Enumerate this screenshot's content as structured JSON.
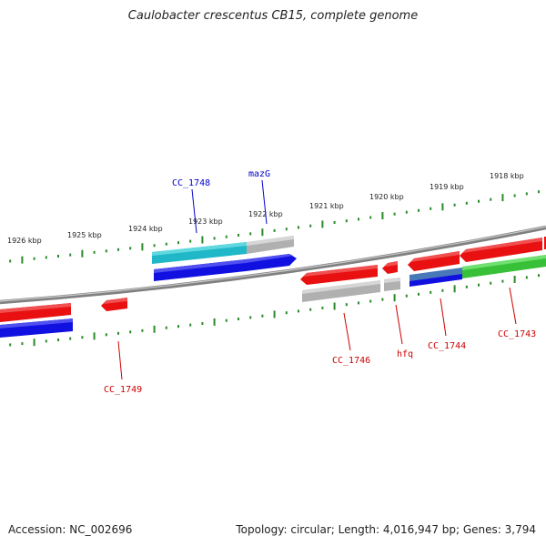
{
  "title": "Caulobacter crescentus CB15, complete genome",
  "footer": {
    "accession": "Accession: NC_002696",
    "genome_info": "Topology: circular; Length: 4,016,947 bp; Genes: 3,794"
  },
  "colors": {
    "backbone": "#808080",
    "tick": "#2a8a2a",
    "label_forward": "#0000cc",
    "label_reverse": "#cc0000",
    "gene_red": "#e81010",
    "gene_blue": "#1010e0",
    "gene_cyan": "#20b8c8",
    "gene_gray": "#b0b0b0",
    "gene_green": "#38c038",
    "gene_steel": "#4878b8"
  },
  "ticks": [
    "1918 kbp",
    "1919 kbp",
    "1920 kbp",
    "1921 kbp",
    "1922 kbp",
    "1923 kbp",
    "1924 kbp",
    "1925 kbp",
    "1926 kbp"
  ],
  "gene_labels": {
    "forward": [
      "CC_1748",
      "mazG"
    ],
    "reverse": [
      "CC_1749",
      "CC_1746",
      "hfq",
      "CC_1744",
      "CC_1743"
    ]
  }
}
